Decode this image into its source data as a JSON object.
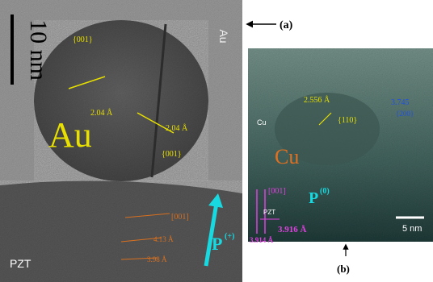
{
  "panel_a": {
    "label": "(a)",
    "scale_bar": "10 nm",
    "corner_label": "Au",
    "particle_label": "Au",
    "substrate_label": "PZT",
    "plane_1": "{001}",
    "spacing_1": "2.04 Å",
    "spacing_2": "2.04 Å",
    "plane_2": "{001}",
    "polarization": {
      "symbol": "P",
      "superscript": "(+)"
    },
    "substrate_direction": "[001]",
    "substrate_spacing_1": "4.13 Å",
    "substrate_spacing_2": "3.98 Å"
  },
  "panel_b": {
    "label": "(b)",
    "scale_bar": "5 nm",
    "small_label": "Cu",
    "particle_label": "Cu",
    "spacing_1": "2.556 Å",
    "plane_1": "{110}",
    "spacing_2": "3.745",
    "plane_2": "{200}",
    "direction": "[001]",
    "polarization": {
      "symbol": "P",
      "superscript": "(0)"
    },
    "substrate_label": "PZT",
    "substrate_spacing_1": "3.914 Å",
    "substrate_spacing_2": "3.916 Å"
  }
}
